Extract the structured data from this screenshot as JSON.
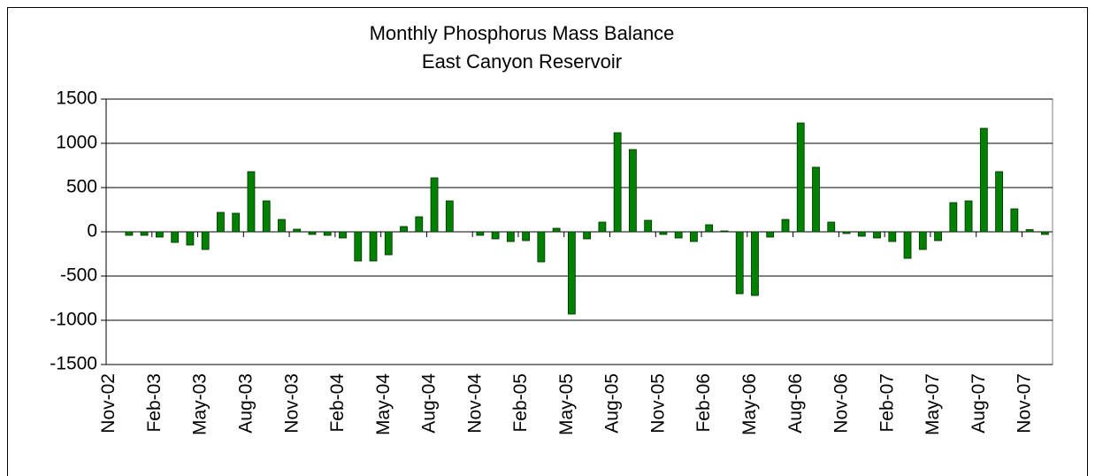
{
  "chart_data": {
    "type": "bar",
    "title": "Monthly Phosphorus Mass Balance",
    "subtitle": "East Canyon Reservoir",
    "categories": [
      "Nov-02",
      null,
      null,
      "Feb-03",
      null,
      null,
      "May-03",
      null,
      null,
      "Aug-03",
      null,
      null,
      "Nov-03",
      null,
      null,
      "Feb-04",
      null,
      null,
      "May-04",
      null,
      null,
      "Aug-04",
      null,
      null,
      "Nov-04",
      null,
      null,
      "Feb-05",
      null,
      null,
      "May-05",
      null,
      null,
      "Aug-05",
      null,
      null,
      "Nov-05",
      null,
      null,
      "Feb-06",
      null,
      null,
      "May-06",
      null,
      null,
      "Aug-06",
      null,
      null,
      "Nov-06",
      null,
      null,
      "Feb-07",
      null,
      null,
      "May-07",
      null,
      null,
      "Aug-07",
      null,
      null,
      "Nov-07",
      null
    ],
    "values": [
      0,
      -40,
      -40,
      -60,
      -120,
      -150,
      -200,
      220,
      210,
      680,
      350,
      140,
      30,
      -30,
      -40,
      -70,
      -330,
      -330,
      -260,
      60,
      170,
      610,
      350,
      0,
      -40,
      -80,
      -110,
      -100,
      -340,
      40,
      -930,
      -80,
      110,
      1120,
      930,
      130,
      -30,
      -70,
      -110,
      80,
      10,
      -700,
      -720,
      -60,
      140,
      1230,
      730,
      110,
      -20,
      -50,
      -70,
      -110,
      -300,
      -200,
      -100,
      330,
      350,
      1170,
      680,
      260,
      25,
      -30
    ],
    "color": "#008000",
    "ylim": [
      -1500,
      1500
    ],
    "yticks": [
      -1500,
      -1000,
      -500,
      0,
      500,
      1000,
      1500
    ],
    "grid": true
  }
}
